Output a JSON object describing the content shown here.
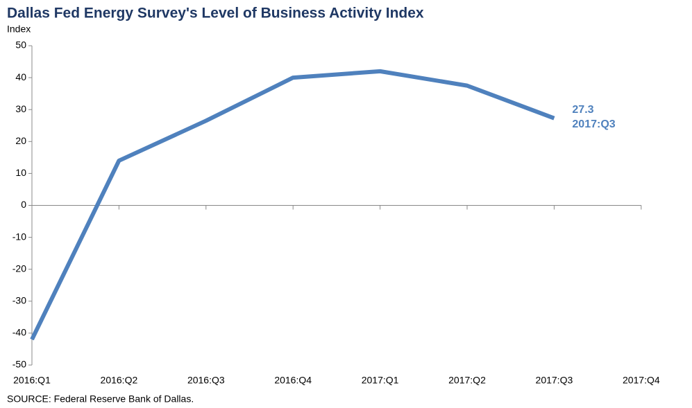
{
  "chart_data": {
    "type": "line",
    "title": "Dallas Fed Energy Survey's Level of Business Activity Index",
    "y_axis_label": "Index",
    "source": "SOURCE: Federal Reserve Bank of Dallas.",
    "categories": [
      "2016:Q1",
      "2016:Q2",
      "2016:Q3",
      "2016:Q4",
      "2017:Q1",
      "2017:Q2",
      "2017:Q3",
      "2017:Q4"
    ],
    "values": [
      -42,
      14,
      26.5,
      40,
      42,
      37.5,
      27.3,
      null
    ],
    "color": "#4f81bd",
    "ylim": [
      -50,
      50
    ],
    "yticks": [
      -50,
      -40,
      -30,
      -20,
      -10,
      0,
      10,
      20,
      30,
      40,
      50
    ],
    "grid": false
  }
}
